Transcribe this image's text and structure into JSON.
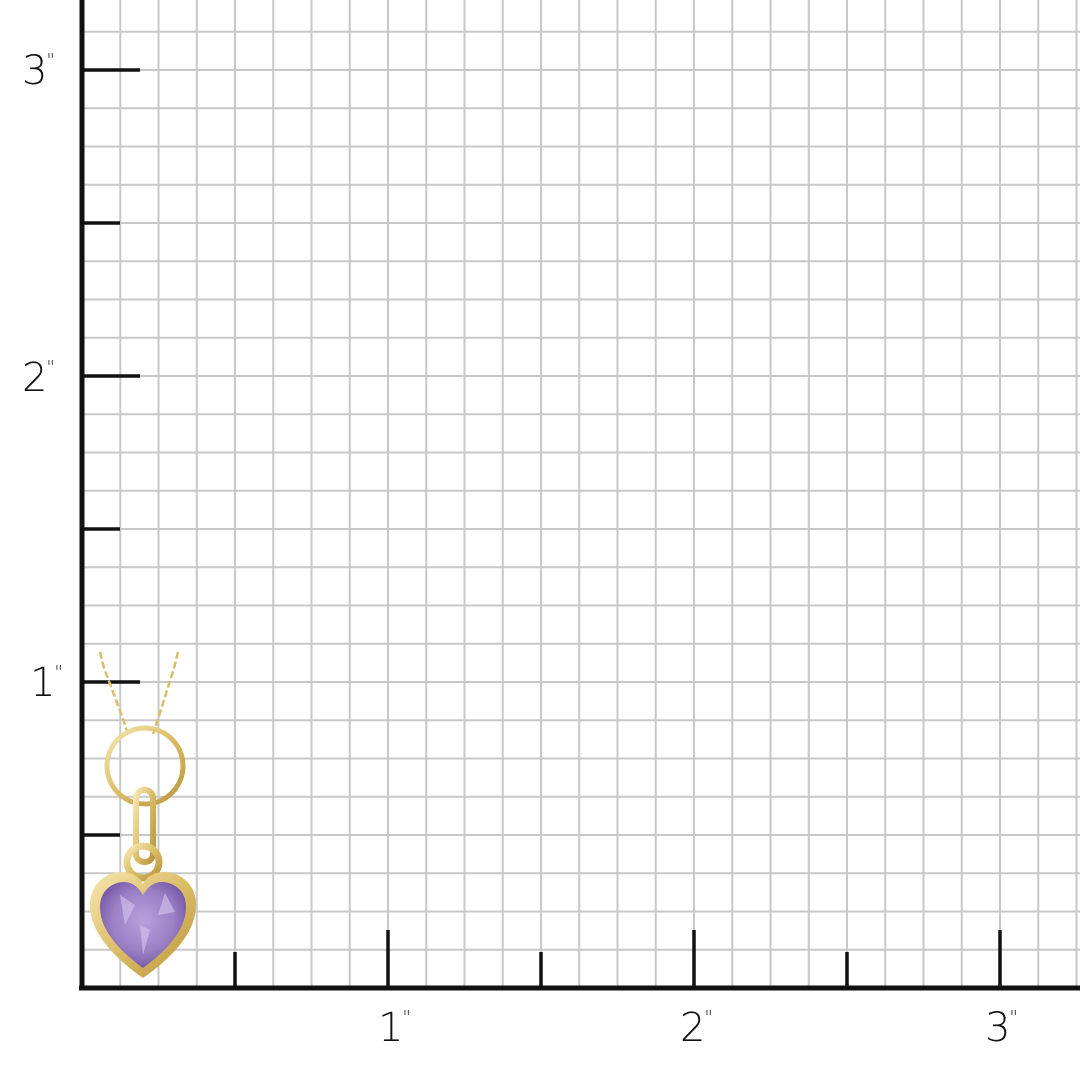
{
  "ruler": {
    "unit_symbol": "\"",
    "vertical_labels": [
      "1",
      "2",
      "3"
    ],
    "horizontal_labels": [
      "1",
      "2",
      "3"
    ],
    "grid_subdivisions_per_inch": 8,
    "grid_color": "#c8c8c8",
    "axis_color": "#111111"
  },
  "product": {
    "type": "heart pendant necklace",
    "metal_color": "#e6c97a",
    "stone_color": "#9b7fc4"
  }
}
